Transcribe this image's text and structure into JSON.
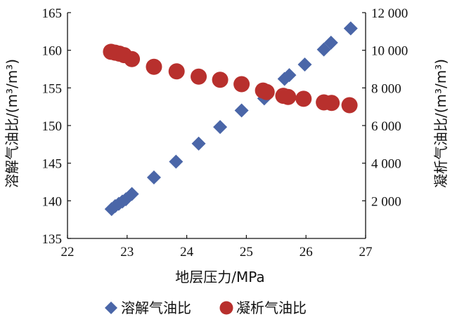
{
  "chart_data": {
    "type": "scatter",
    "title": "",
    "xlabel": "地层压力/MPa",
    "ylabel_left": "溶解气油比/(m³/m³)",
    "ylabel_right": "凝析气油比/(m³/m³)",
    "xlim": [
      22,
      27
    ],
    "ylim_left": [
      135,
      165
    ],
    "ylim_right": [
      0,
      12000
    ],
    "x_ticks": [
      "22",
      "23",
      "24",
      "25",
      "26",
      "27"
    ],
    "y_ticks_left": [
      "135",
      "140",
      "145",
      "150",
      "155",
      "160",
      "165"
    ],
    "y_ticks_right": [
      "2 000",
      "4 000",
      "6 000",
      "8 000",
      "10 000",
      "12 000"
    ],
    "legend_position": "bottom-center",
    "series": [
      {
        "name": "溶解气油比",
        "axis": "left",
        "marker": "diamond",
        "color": "#4a66a8",
        "x": [
          22.74,
          22.8,
          22.86,
          22.92,
          22.98,
          23.08,
          23.45,
          23.82,
          24.2,
          24.56,
          24.92,
          25.3,
          25.64,
          25.72,
          25.98,
          26.3,
          26.42,
          26.75
        ],
        "y": [
          138.9,
          139.3,
          139.6,
          139.9,
          140.2,
          140.9,
          143.1,
          145.2,
          147.6,
          149.8,
          152.0,
          153.6,
          156.2,
          156.7,
          158.1,
          160.1,
          161.0,
          162.9
        ]
      },
      {
        "name": "凝析气油比",
        "axis": "right",
        "marker": "circle",
        "color": "#b8302d",
        "x": [
          22.73,
          22.8,
          22.87,
          22.95,
          23.08,
          23.45,
          23.83,
          24.2,
          24.56,
          24.92,
          25.28,
          25.34,
          25.62,
          25.7,
          25.96,
          26.3,
          26.43,
          26.73
        ],
        "y": [
          9920,
          9870,
          9820,
          9740,
          9530,
          9120,
          8880,
          8600,
          8430,
          8200,
          7860,
          7780,
          7580,
          7520,
          7420,
          7230,
          7200,
          7080
        ]
      }
    ]
  }
}
